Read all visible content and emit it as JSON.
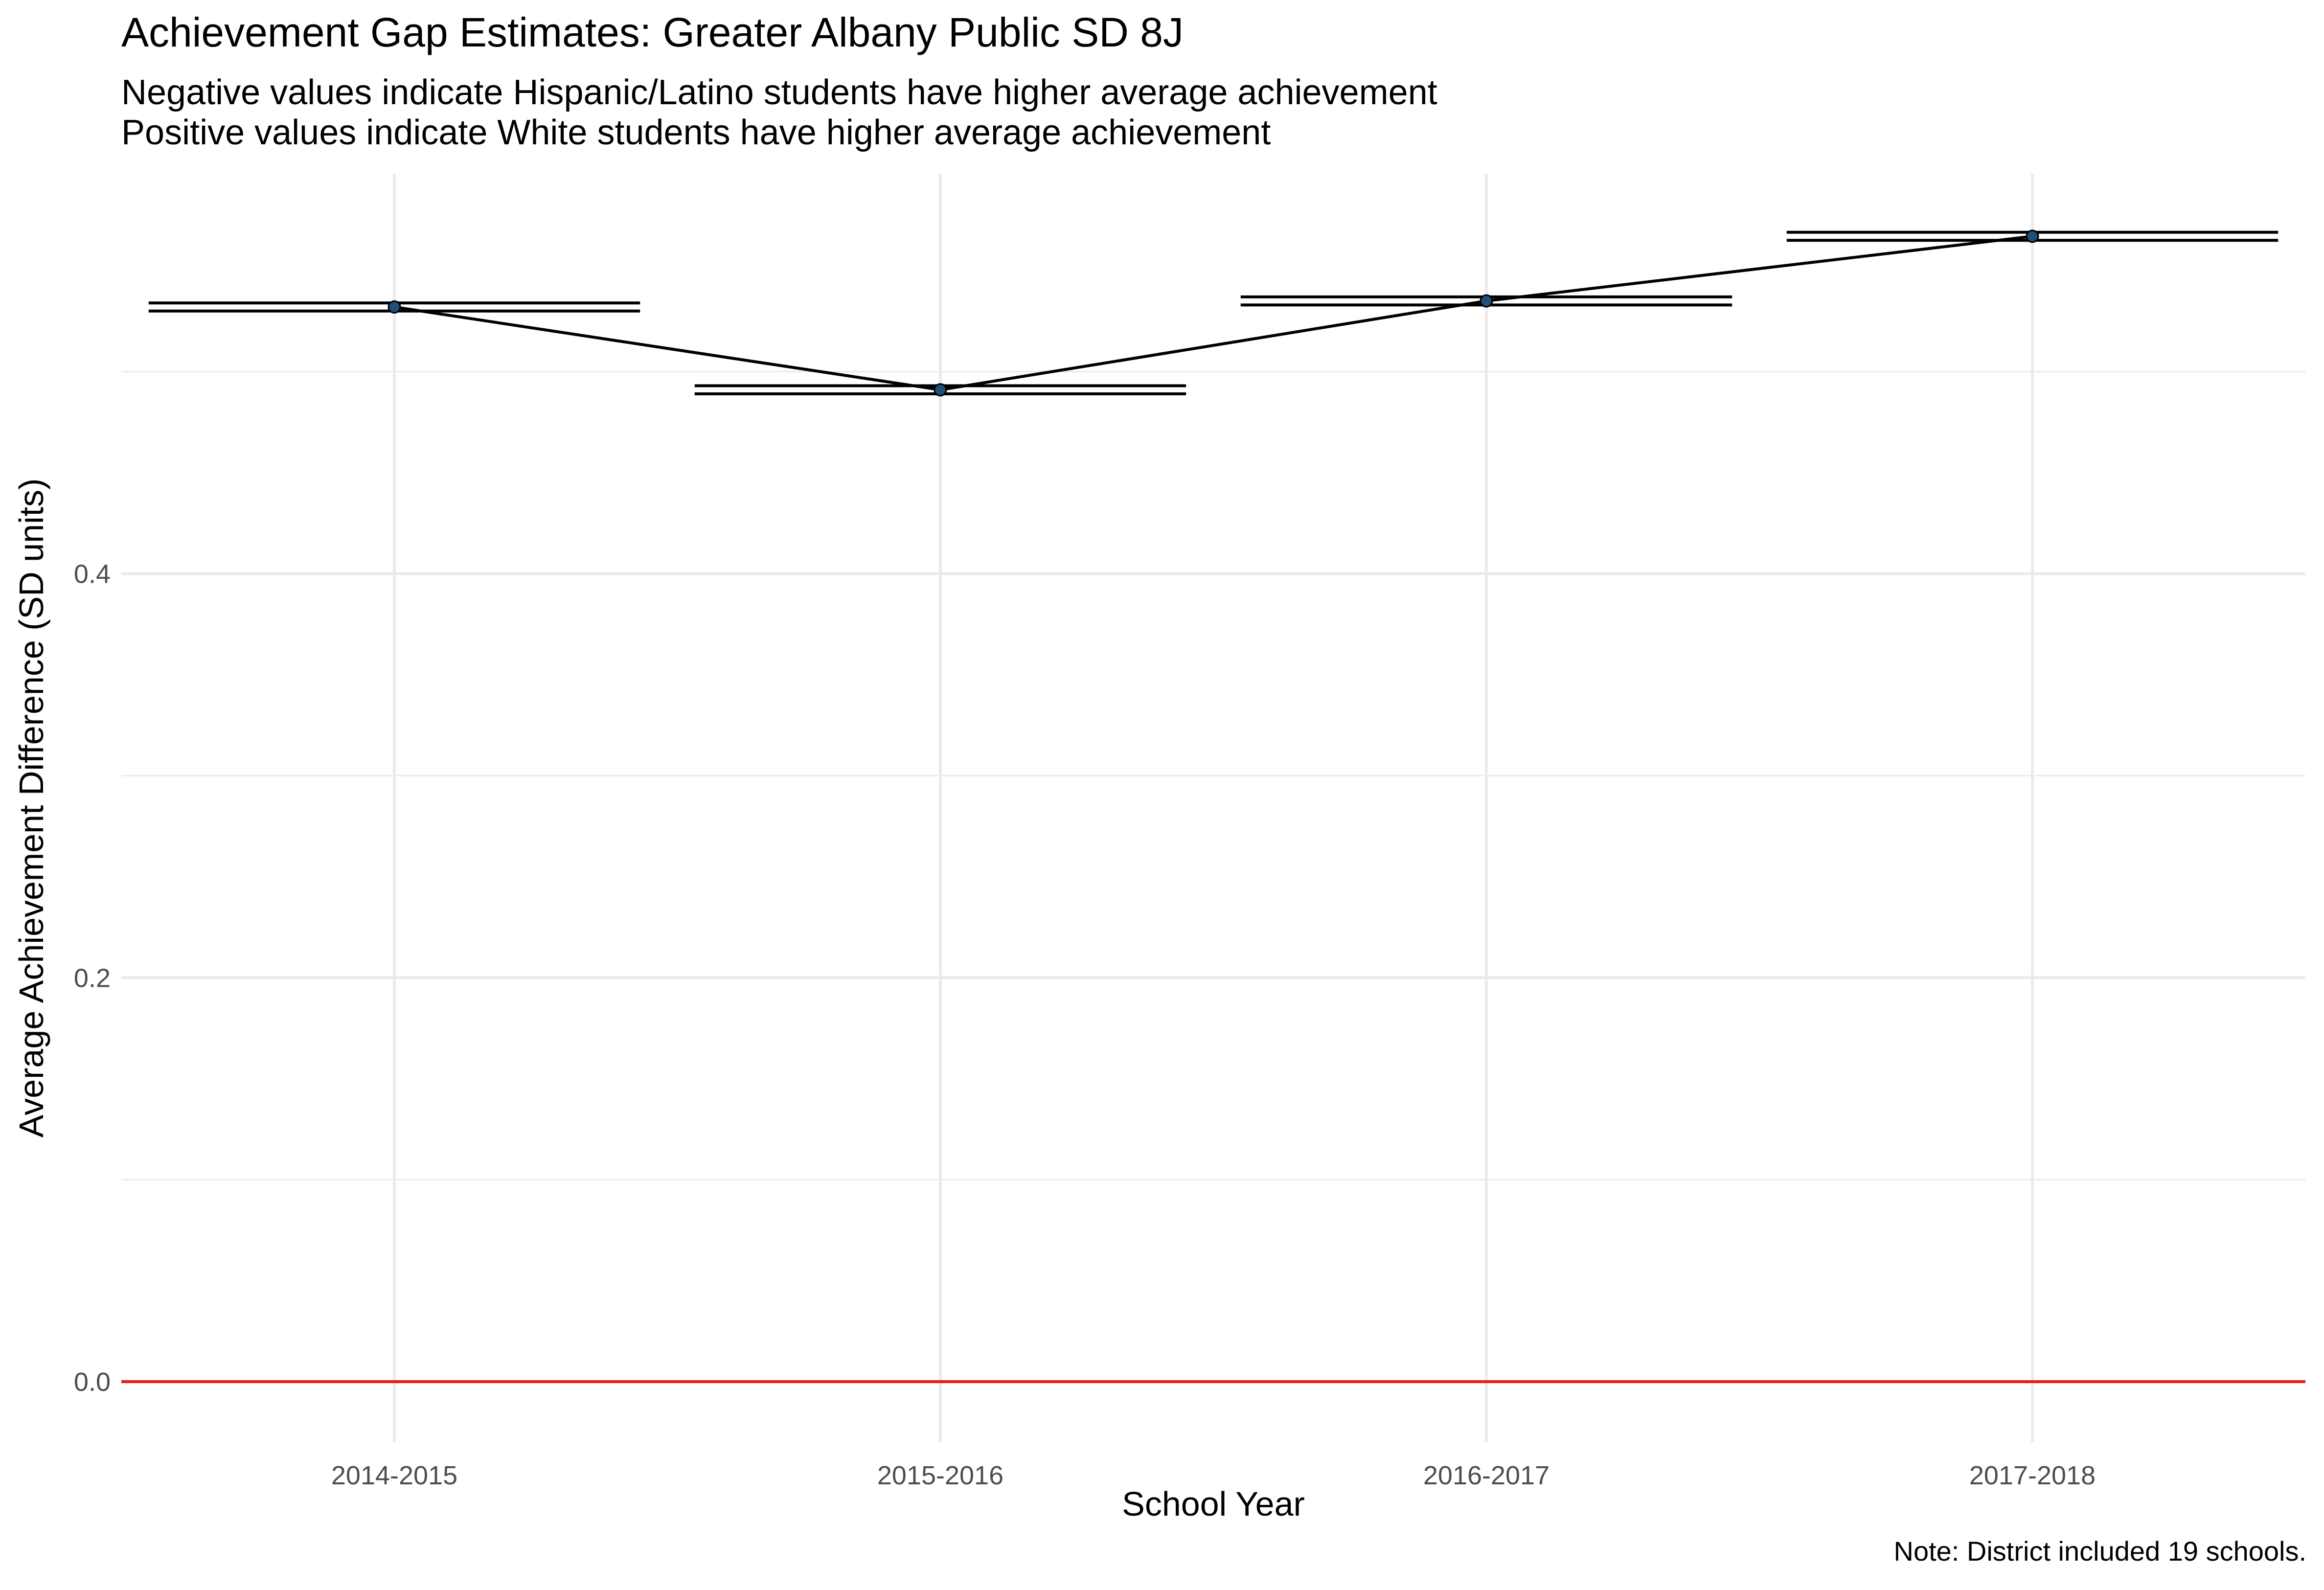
{
  "chart_data": {
    "type": "line",
    "title": "Achievement Gap Estimates: Greater Albany Public SD 8J",
    "subtitle_lines": [
      "Negative values indicate Hispanic/Latino students have higher average achievement",
      "Positive values indicate White students have higher average achievement"
    ],
    "xlabel": "School Year",
    "ylabel": "Average Achievement Difference (SD units)",
    "caption": "Note: District included 19 schools.",
    "categories": [
      "2014-2015",
      "2015-2016",
      "2016-2017",
      "2017-2018"
    ],
    "values": [
      0.532,
      0.491,
      0.535,
      0.567
    ],
    "error_bars": {
      "lower": [
        0.53,
        0.489,
        0.533,
        0.565
      ],
      "upper": [
        0.534,
        0.493,
        0.537,
        0.569
      ]
    },
    "ylim": [
      -0.03,
      0.598
    ],
    "y_ticks": [
      0.0,
      0.2,
      0.4
    ],
    "y_tick_labels": [
      "0.0",
      "0.2",
      "0.4"
    ],
    "minor_grid": [
      0.1,
      0.3,
      0.5
    ],
    "reference_line": {
      "y": 0,
      "color": "#e41a1c"
    },
    "grid": true,
    "legend": "none",
    "colors": {
      "line": "#000000",
      "point": "#1f4e79",
      "reference": "#e41a1c",
      "grid": "#ebebeb"
    }
  }
}
